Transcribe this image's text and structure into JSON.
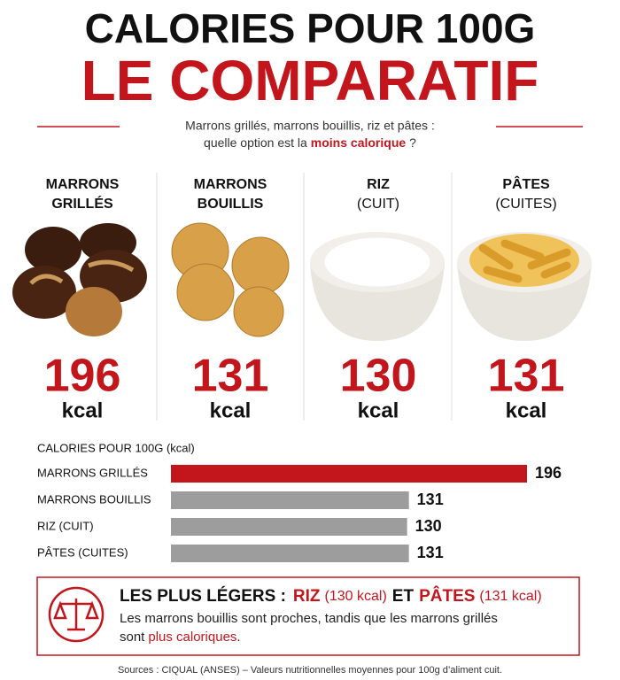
{
  "header": {
    "title_line1": "CALORIES POUR 100G",
    "title_line2": "LE COMPARATIF",
    "subtitle_line1": "Marrons grillés, marrons bouillis, riz et pâtes :",
    "subtitle_line2_start": "quelle option est la",
    "subtitle_highlight": "moins calorique",
    "subtitle_end": "?"
  },
  "cards": [
    {
      "name_line1": "MARRONS",
      "name_line2": "GRILLÉS",
      "value": 196,
      "unit": "kcal"
    },
    {
      "name_line1": "MARRONS",
      "name_line2": "BOUILLIS",
      "value": 131,
      "unit": "kcal"
    },
    {
      "name_line1": "RIZ",
      "name_line2": "(CUIT)",
      "value": 130,
      "unit": "kcal"
    },
    {
      "name_line1": "PÂTES",
      "name_line2": "(CUITES)",
      "value": 131,
      "unit": "kcal"
    }
  ],
  "chart_data": {
    "type": "bar",
    "orientation": "horizontal",
    "title": "CALORIES POUR 100G (kcal)",
    "categories": [
      "MARRONS GRILLÉS",
      "MARRONS BOUILLIS",
      "RIZ (CUIT)",
      "PÂTES (CUITES)"
    ],
    "values": [
      196,
      131,
      130,
      131
    ],
    "colors": [
      "#c3161c",
      "#9d9d9d",
      "#9d9d9d",
      "#9d9d9d"
    ]
  },
  "conclusion": {
    "title_start": "LES PLUS LÉGERS :",
    "item1": "RIZ",
    "item1_value": "(130 kcal)",
    "joiner": "ET",
    "item2": "PÂTES",
    "item2_value": "(131 kcal)",
    "text_line1": "Les marrons bouillis sont proches, tandis que les marrons grillés",
    "text_line2_start": "sont",
    "text_highlight": "plus caloriques",
    "text_end": "."
  },
  "sources": "Sources : CIQUAL (ANSES) – Valeurs nutritionnelles moyennes pour 100g d’aliment cuit."
}
